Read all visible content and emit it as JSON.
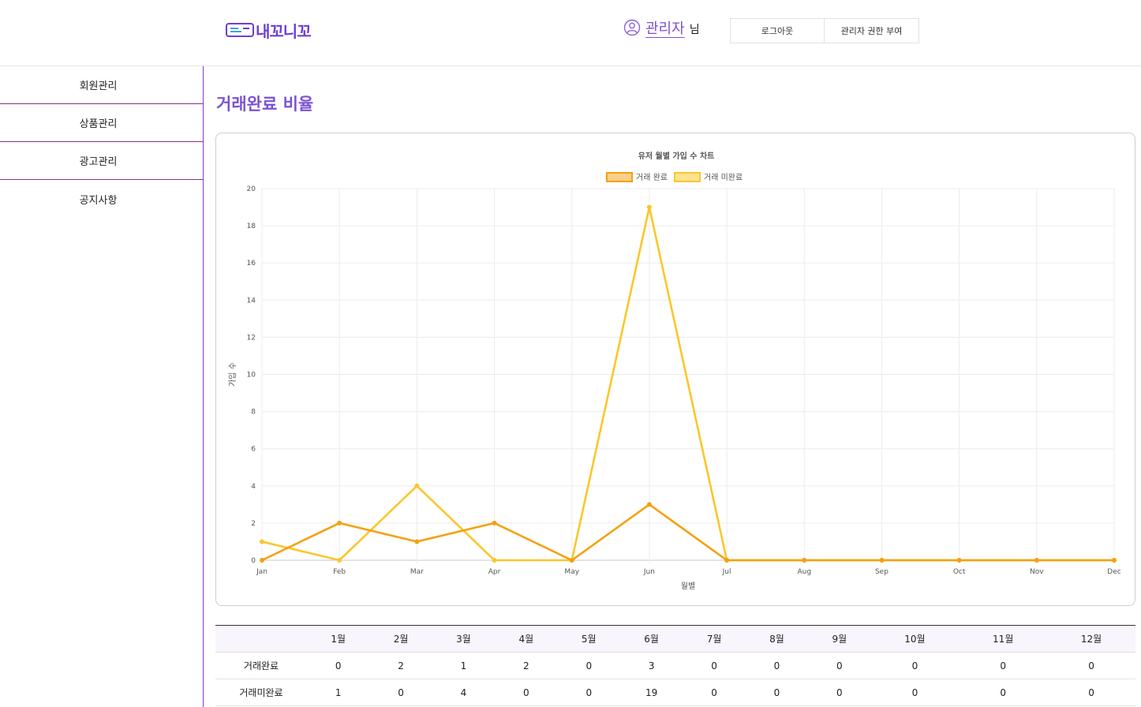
{
  "header": {
    "logo_text": "내꼬니꼬",
    "user_name": "관리자",
    "user_suffix": "님",
    "logout_label": "로그아웃",
    "grant_label": "관리자 권한 부여"
  },
  "sidebar": {
    "items": [
      {
        "label": "회원관리"
      },
      {
        "label": "상품관리"
      },
      {
        "label": "광고관리"
      },
      {
        "label": "공지사항"
      }
    ]
  },
  "main": {
    "title": "거래완료 비율"
  },
  "colors": {
    "accent": "#7b52d3",
    "series_complete": "#f5a00f",
    "series_incomplete": "#fcc62a"
  },
  "chart_data": {
    "type": "line",
    "title": "유저 월별 가입 수 차트",
    "xlabel": "월별",
    "ylabel": "가입 수",
    "categories": [
      "Jan",
      "Feb",
      "Mar",
      "Apr",
      "May",
      "Jun",
      "Jul",
      "Aug",
      "Sep",
      "Oct",
      "Nov",
      "Dec"
    ],
    "ylim": [
      0,
      20
    ],
    "yticks": [
      0,
      2,
      4,
      6,
      8,
      10,
      12,
      14,
      16,
      18,
      20
    ],
    "grid": true,
    "legend": "top-center",
    "series": [
      {
        "name": "거래 완료",
        "color": "#f5a00f",
        "fill": "#f9cf8a",
        "values": [
          0,
          2,
          1,
          2,
          0,
          3,
          0,
          0,
          0,
          0,
          0,
          0
        ]
      },
      {
        "name": "거래 미완료",
        "color": "#fcc62a",
        "fill": "#fde38f",
        "values": [
          1,
          0,
          4,
          0,
          0,
          19,
          0,
          0,
          0,
          0,
          0,
          0
        ]
      }
    ]
  },
  "table": {
    "headers": [
      "",
      "1월",
      "2월",
      "3월",
      "4월",
      "5월",
      "6월",
      "7월",
      "8월",
      "9월",
      "10월",
      "11월",
      "12월"
    ],
    "rows": [
      {
        "label": "거래완료",
        "values": [
          0,
          2,
          1,
          2,
          0,
          3,
          0,
          0,
          0,
          0,
          0,
          0
        ]
      },
      {
        "label": "거래미완료",
        "values": [
          1,
          0,
          4,
          0,
          0,
          19,
          0,
          0,
          0,
          0,
          0,
          0
        ]
      }
    ]
  }
}
